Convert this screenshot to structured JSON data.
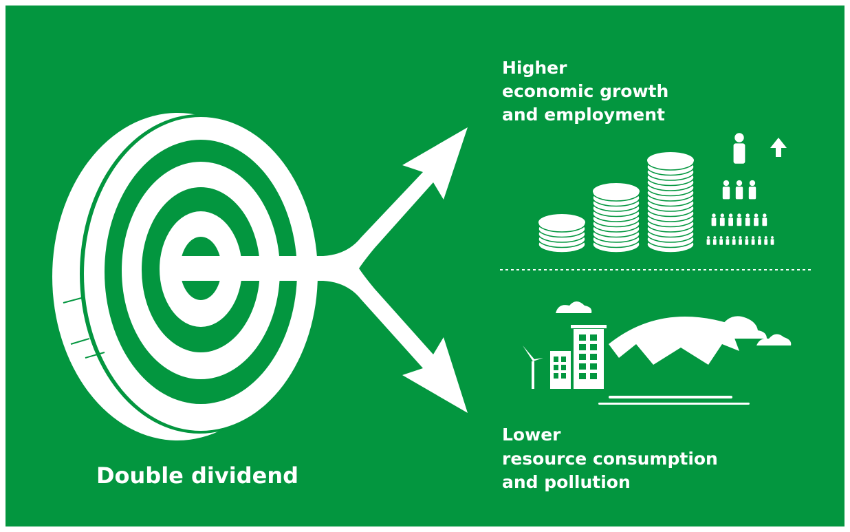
{
  "title": "Double dividend",
  "top": {
    "lines": [
      "Higher",
      "economic growth",
      "and employment"
    ]
  },
  "bottom": {
    "lines": [
      "Lower",
      "resource consumption",
      "and pollution"
    ]
  }
}
